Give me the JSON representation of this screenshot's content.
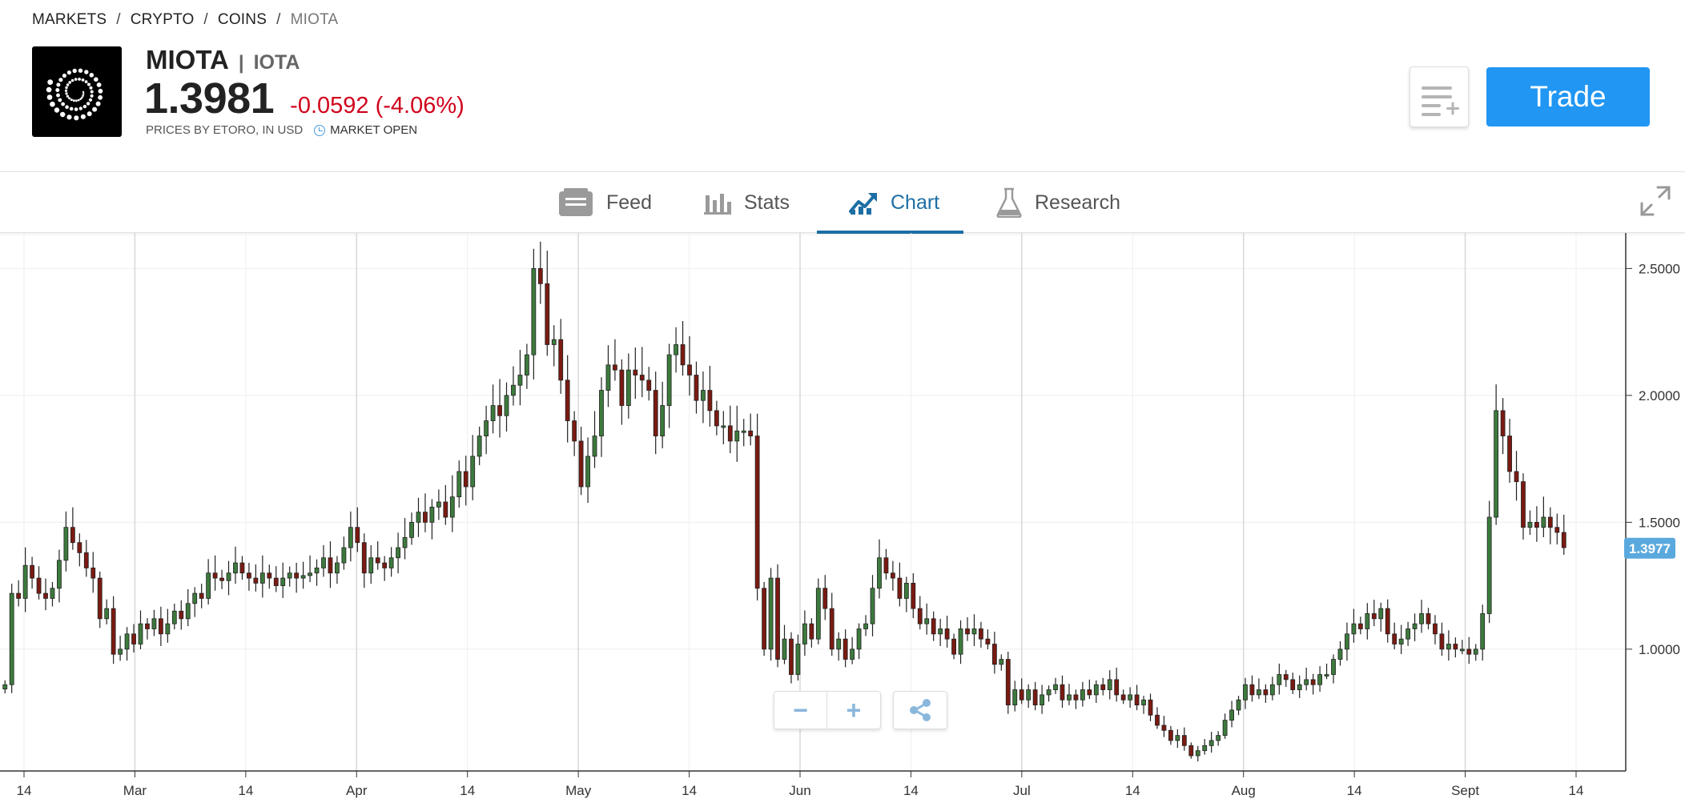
{
  "breadcrumb": {
    "items": [
      "MARKETS",
      "CRYPTO",
      "COINS",
      "MIOTA"
    ],
    "separator": "/"
  },
  "instrument": {
    "symbol": "MIOTA",
    "pipe": "|",
    "name": "IOTA",
    "price": "1.3981",
    "change": "-0.0592 (-4.06%)",
    "price_source": "PRICES BY ETORO, IN USD",
    "market_status": "MARKET OPEN",
    "logo_icon": "iota-logo-icon"
  },
  "actions": {
    "watchlist_icon": "add-to-watchlist-icon",
    "trade_label": "Trade"
  },
  "tabs": [
    {
      "label": "Feed",
      "icon": "feed-icon",
      "active": false
    },
    {
      "label": "Stats",
      "icon": "stats-icon",
      "active": false
    },
    {
      "label": "Chart",
      "icon": "chart-icon",
      "active": true
    },
    {
      "label": "Research",
      "icon": "flask-icon",
      "active": false
    }
  ],
  "chart_controls": {
    "zoom_out": "−",
    "zoom_in": "+",
    "share_icon": "share-icon",
    "fullscreen_icon": "expand-icon"
  },
  "colors": {
    "up_candle": "#3d7a3d",
    "down_candle": "#7a1a12",
    "accent": "#2196f3",
    "negative": "#d0021b",
    "price_tag": "#5aa9de",
    "active_tab": "#1c6ea4"
  },
  "chart_data": {
    "type": "candlestick",
    "title": "",
    "y_ticks": [
      "2.5000",
      "2.0000",
      "1.5000",
      "1.0000"
    ],
    "x_ticks": [
      "14",
      "Mar",
      "14",
      "Apr",
      "14",
      "May",
      "14",
      "Jun",
      "14",
      "Jul",
      "14",
      "Aug",
      "14",
      "Sept",
      "14"
    ],
    "current_price_label": "1.3977",
    "current_price": 1.3977,
    "ylim": [
      0.52,
      2.64
    ],
    "grid": true,
    "series_close": [
      0.86,
      1.22,
      1.2,
      1.33,
      1.28,
      1.22,
      1.2,
      1.24,
      1.35,
      1.48,
      1.42,
      1.38,
      1.32,
      1.28,
      1.12,
      1.16,
      0.98,
      1.0,
      1.06,
      1.02,
      1.1,
      1.08,
      1.12,
      1.06,
      1.1,
      1.15,
      1.12,
      1.18,
      1.22,
      1.2,
      1.3,
      1.28,
      1.27,
      1.3,
      1.34,
      1.3,
      1.28,
      1.26,
      1.3,
      1.28,
      1.25,
      1.28,
      1.3,
      1.28,
      1.29,
      1.3,
      1.32,
      1.36,
      1.3,
      1.34,
      1.4,
      1.48,
      1.42,
      1.3,
      1.36,
      1.34,
      1.32,
      1.36,
      1.4,
      1.44,
      1.5,
      1.54,
      1.5,
      1.56,
      1.58,
      1.52,
      1.6,
      1.7,
      1.64,
      1.76,
      1.84,
      1.9,
      1.96,
      1.92,
      2.0,
      2.04,
      2.08,
      2.16,
      2.5,
      2.44,
      2.2,
      2.22,
      2.06,
      1.9,
      1.82,
      1.64,
      1.76,
      1.84,
      2.02,
      2.12,
      2.1,
      1.96,
      2.1,
      2.08,
      2.06,
      2.02,
      1.84,
      1.96,
      2.16,
      2.2,
      2.12,
      2.08,
      1.98,
      2.02,
      1.94,
      1.88,
      1.88,
      1.82,
      1.86,
      1.86,
      1.84,
      1.24,
      1.0,
      1.28,
      0.96,
      1.04,
      0.9,
      1.02,
      1.1,
      1.04,
      1.24,
      1.16,
      1.0,
      1.04,
      0.96,
      1.0,
      1.08,
      1.1,
      1.24,
      1.36,
      1.3,
      1.28,
      1.2,
      1.26,
      1.16,
      1.1,
      1.12,
      1.06,
      1.08,
      1.04,
      0.98,
      1.08,
      1.06,
      1.08,
      1.04,
      1.02,
      0.94,
      0.96,
      0.78,
      0.84,
      0.8,
      0.84,
      0.78,
      0.82,
      0.84,
      0.86,
      0.8,
      0.82,
      0.8,
      0.84,
      0.82,
      0.86,
      0.84,
      0.88,
      0.82,
      0.8,
      0.82,
      0.78,
      0.8,
      0.74,
      0.7,
      0.68,
      0.64,
      0.66,
      0.62,
      0.58,
      0.6,
      0.62,
      0.64,
      0.66,
      0.72,
      0.76,
      0.8,
      0.86,
      0.82,
      0.84,
      0.82,
      0.86,
      0.9,
      0.88,
      0.84,
      0.86,
      0.88,
      0.86,
      0.9,
      0.9,
      0.96,
      1.0,
      1.06,
      1.1,
      1.08,
      1.14,
      1.12,
      1.16,
      1.06,
      1.02,
      1.04,
      1.08,
      1.1,
      1.14,
      1.1,
      1.06,
      1.0,
      1.02,
      1.0,
      1.0,
      0.98,
      1.0,
      1.14,
      1.52,
      1.94,
      1.84,
      1.7,
      1.66,
      1.48,
      1.5,
      1.48,
      1.52,
      1.48,
      1.46,
      1.4
    ]
  }
}
